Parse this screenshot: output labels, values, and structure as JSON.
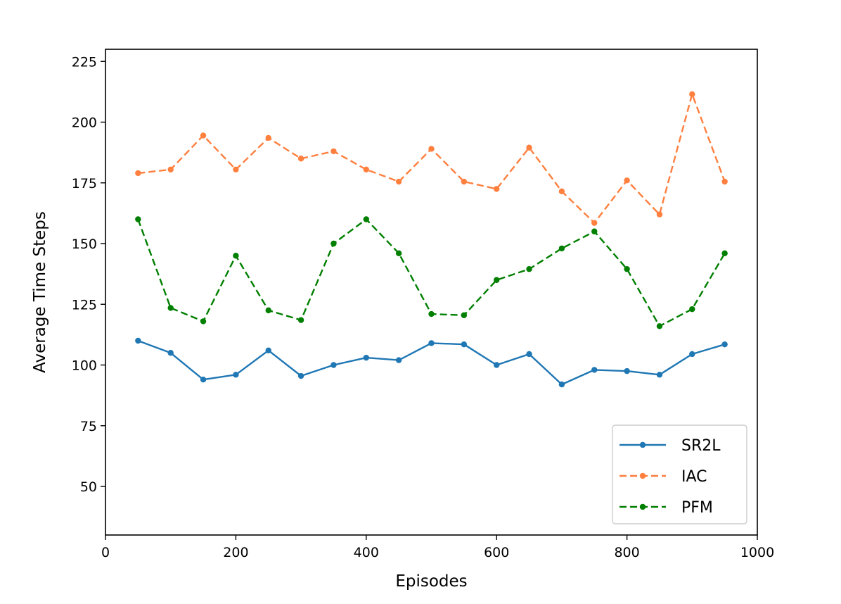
{
  "chart_data": {
    "type": "line",
    "xlabel": "Episodes",
    "ylabel": "Average Time Steps",
    "xlim": [
      0,
      1000
    ],
    "ylim": [
      30,
      230
    ],
    "xticks": [
      0,
      200,
      400,
      600,
      800,
      1000
    ],
    "yticks": [
      50,
      75,
      100,
      125,
      150,
      175,
      200,
      225
    ],
    "grid": false,
    "legend_position": "lower-right",
    "x": [
      50,
      100,
      150,
      200,
      250,
      300,
      350,
      400,
      450,
      500,
      550,
      600,
      650,
      700,
      750,
      800,
      850,
      900,
      950
    ],
    "series": [
      {
        "name": "SR2L",
        "color": "#1f77b4",
        "style": "solid",
        "values": [
          110,
          105,
          94,
          96,
          106,
          95.5,
          100,
          103,
          102,
          109,
          108.5,
          100,
          104.5,
          92,
          98,
          97.5,
          96,
          104.5,
          108.5
        ]
      },
      {
        "name": "IAC",
        "color": "#ff7f3f",
        "style": "dashed",
        "values": [
          179,
          180.5,
          194.5,
          180.5,
          193.5,
          185,
          188,
          180.5,
          175.5,
          189,
          175.5,
          172.5,
          189.5,
          171.5,
          158.5,
          176,
          162,
          211.5,
          175.5
        ]
      },
      {
        "name": "PFM",
        "color": "#007f00",
        "style": "dashed",
        "values": [
          160,
          123.5,
          118,
          145,
          122.5,
          118.5,
          150,
          160,
          146,
          121,
          120.5,
          135,
          139.5,
          148,
          155,
          139.5,
          116,
          123,
          146
        ]
      }
    ]
  }
}
